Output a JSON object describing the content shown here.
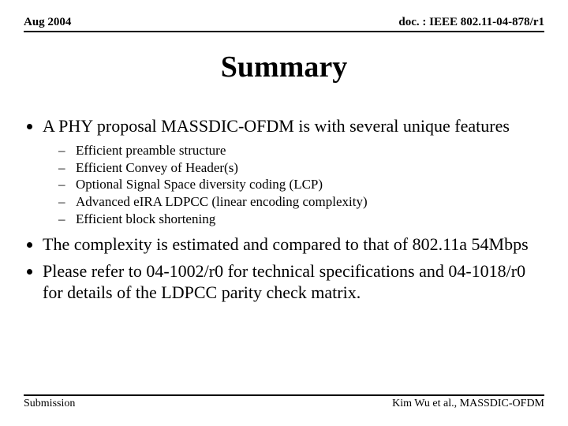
{
  "header": {
    "date": "Aug 2004",
    "doc_prefix": "doc. : IEEE 802.11-",
    "doc_tail": "04-878/r1"
  },
  "title": "Summary",
  "bullets": {
    "b1": "A PHY proposal MASSDIC-OFDM is with several unique features",
    "sub": {
      "s1": "Efficient preamble structure",
      "s2": "Efficient Convey of Header(s)",
      "s3": "Optional Signal Space diversity coding (LCP)",
      "s4": "Advanced eIRA LDPCC (linear encoding complexity)",
      "s5": "Efficient block shortening"
    },
    "b2": "The complexity is estimated and compared to that of 802.11a 54Mbps",
    "b3": "Please refer to 04-1002/r0 for technical specifications and 04-1018/r0 for details of the LDPCC parity check matrix."
  },
  "footer": {
    "left": "Submission",
    "right": "Kim Wu et al., MASSDIC-OFDM"
  }
}
